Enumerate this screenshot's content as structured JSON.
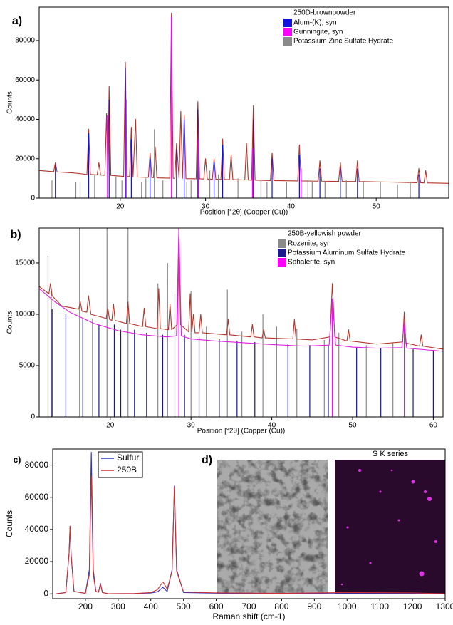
{
  "chart_data": [
    {
      "type": "xrd",
      "panel_label": "a)",
      "x_label": "Position [°2θ] (Copper (Cu))",
      "y_label": "Counts",
      "legend_title": "250D-brownpowder",
      "legend": "upper right",
      "xlim": [
        10.5,
        58.5
      ],
      "xticks": [
        20,
        30,
        40,
        50
      ],
      "ylim": [
        0,
        97000
      ],
      "yticks": [
        0,
        20000,
        40000,
        60000,
        80000
      ],
      "series": [
        {
          "color": "#b5342a",
          "kind": "line",
          "x": [
            10.5,
            12.2,
            12.4,
            12.6,
            14.5,
            16.1,
            16.3,
            16.5,
            17.3,
            17.5,
            17.7,
            18.2,
            18.4,
            18.55,
            18.7,
            18.9,
            20.4,
            20.6,
            20.8,
            21.1,
            21.3,
            21.5,
            21.8,
            22.0,
            23.3,
            23.5,
            23.7,
            23.9,
            24.1,
            24.3,
            25.8,
            26.0,
            26.2,
            26.4,
            26.6,
            26.9,
            27.1,
            27.3,
            27.5,
            27.7,
            28.9,
            29.1,
            29.3,
            29.8,
            30.0,
            30.2,
            30.8,
            31.0,
            31.2,
            31.8,
            32.0,
            32.2,
            32.8,
            33.0,
            33.2,
            34.6,
            34.8,
            35.0,
            35.4,
            35.6,
            35.8,
            37.6,
            37.8,
            38.0,
            40.8,
            41.0,
            41.2,
            43.2,
            43.4,
            43.6,
            45.6,
            45.8,
            46.0,
            47.6,
            47.8,
            48.0,
            52,
            54.8,
            55.0,
            55.2,
            55.6,
            55.8,
            56.0,
            58.5
          ],
          "values": [
            14000,
            13400,
            18000,
            13300,
            12800,
            12000,
            35000,
            12000,
            11800,
            18000,
            11700,
            11600,
            43000,
            12000,
            57000,
            11500,
            11000,
            69000,
            10900,
            11000,
            36000,
            10800,
            40000,
            10700,
            10500,
            23000,
            10400,
            10400,
            26000,
            10300,
            10100,
            94000,
            10100,
            10000,
            28000,
            10000,
            44000,
            10000,
            42000,
            9900,
            9800,
            49000,
            9800,
            9700,
            20000,
            9700,
            9600,
            20000,
            9600,
            9500,
            30000,
            9500,
            9400,
            22000,
            9400,
            9200,
            28000,
            9200,
            9100,
            47000,
            9100,
            8900,
            23000,
            8900,
            8700,
            27000,
            8700,
            8600,
            19000,
            8600,
            8500,
            18000,
            8500,
            8400,
            19000,
            8400,
            8100,
            7800,
            15000,
            7800,
            7700,
            14000,
            7700,
            7500
          ]
        },
        {
          "name": "Alum-(K), syn",
          "color": "#1010e0",
          "kind": "stick",
          "x": [
            12.4,
            16.3,
            18.7,
            20.6,
            21.3,
            23.5,
            26.6,
            27.5,
            29.1,
            31.0,
            32.0,
            35.6,
            37.8,
            41.0,
            43.4,
            45.8,
            47.8,
            55.0
          ],
          "values": [
            17000,
            33000,
            50000,
            66000,
            30000,
            20000,
            25000,
            40000,
            45000,
            18000,
            27000,
            40000,
            20000,
            22000,
            15000,
            15000,
            15000,
            12000
          ]
        },
        {
          "name": "Gunningite, syn",
          "color": "#ff00ff",
          "kind": "stick",
          "x": [
            18.5,
            20.7,
            26.0,
            29.2,
            35.5,
            41.2
          ],
          "values": [
            42000,
            50000,
            92000,
            30000,
            25000,
            15000
          ]
        },
        {
          "name": "Potassium Zinc Sulfate Hydrate",
          "color": "#8a8a8a",
          "kind": "stick",
          "x": [
            12.0,
            14.8,
            15.3,
            17.0,
            19.5,
            20.2,
            22.5,
            23.0,
            24.0,
            25.0,
            27.8,
            28.3,
            30.5,
            31.5,
            33.8,
            36.5,
            37.2,
            39.5,
            42.0,
            42.5,
            44.0,
            46.5,
            48.5,
            50.5,
            52.5,
            54.0
          ],
          "values": [
            9000,
            8000,
            8000,
            12000,
            11000,
            9000,
            8000,
            10000,
            35000,
            9000,
            8000,
            9000,
            14000,
            12000,
            10000,
            9000,
            8000,
            8000,
            9000,
            8000,
            8000,
            9000,
            8000,
            8000,
            7000,
            8000
          ]
        }
      ]
    },
    {
      "type": "xrd",
      "panel_label": "b)",
      "x_label": "Position [°2θ] (Copper (Cu))",
      "y_label": "Counts",
      "legend_title": "250B-yellowish powder",
      "legend": "upper right",
      "xlim": [
        11.2,
        61.2
      ],
      "xticks": [
        20,
        30,
        40,
        50,
        60
      ],
      "ylim": [
        0,
        18400
      ],
      "yticks": [
        0,
        5000,
        10000,
        15000
      ],
      "series": [
        {
          "name": "Rozenite, syn",
          "color": "#8a8a8a",
          "kind": "stick",
          "x": [
            12.3,
            12.7,
            16.2,
            17.8,
            19.6,
            22.2,
            25.9,
            27.1,
            28.0,
            30.0,
            31.9,
            34.5,
            36.3,
            38.9,
            40.6,
            43.1,
            46.5,
            48.3,
            51.7,
            55.0
          ],
          "values": [
            15700,
            12500,
            18400,
            9600,
            18400,
            18400,
            13000,
            15000,
            12000,
            12300,
            8800,
            12400,
            8300,
            10000,
            8800,
            8600,
            7500,
            8200,
            7000,
            7200
          ]
        },
        {
          "name": "Potassium Aluminum Sulfate Hydrate",
          "color": "#1a1a8a",
          "kind": "stick",
          "x": [
            12.8,
            14.5,
            16.6,
            18.6,
            20.5,
            21.3,
            23.0,
            24.5,
            26.5,
            29.2,
            31.0,
            33.5,
            35.7,
            37.9,
            42.0,
            44.7,
            47.0,
            50.5,
            53.5,
            57.5,
            60.0
          ],
          "values": [
            10500,
            10000,
            9500,
            9000,
            9000,
            8500,
            8500,
            8200,
            8000,
            8000,
            7800,
            7600,
            7400,
            7300,
            7100,
            7000,
            7000,
            6800,
            6700,
            6600,
            6500
          ]
        },
        {
          "name": "Sphalerite, syn",
          "color": "#ff00ff",
          "kind": "stick",
          "x": [
            28.5,
            47.5,
            56.4
          ],
          "values": [
            18400,
            11000,
            9000
          ]
        },
        {
          "color": "#b5342a",
          "kind": "line",
          "x": [
            11.2,
            12.4,
            12.6,
            12.8,
            14,
            16.1,
            16.3,
            16.5,
            17.1,
            17.3,
            17.6,
            19.5,
            19.7,
            19.9,
            20.2,
            20.4,
            20.6,
            22.0,
            22.2,
            22.4,
            24.0,
            24.2,
            24.4,
            25.8,
            26.0,
            26.2,
            27.2,
            27.4,
            27.6,
            28.3,
            28.5,
            28.7,
            29.7,
            29.9,
            30.1,
            30.3,
            30.5,
            31.0,
            31.2,
            31.4,
            34.4,
            34.6,
            34.8,
            37.4,
            37.6,
            37.8,
            38.8,
            39.0,
            39.2,
            42.6,
            42.8,
            43.0,
            45,
            47.2,
            47.5,
            47.8,
            49.3,
            49.5,
            49.7,
            53,
            56.2,
            56.4,
            56.6,
            58.3,
            58.5,
            58.7,
            61.2
          ],
          "values": [
            12700,
            12000,
            13000,
            11800,
            10800,
            10500,
            11200,
            10300,
            10200,
            11800,
            10000,
            9600,
            10600,
            9500,
            9400,
            11000,
            9400,
            9100,
            11200,
            9100,
            8800,
            10600,
            8800,
            8600,
            12500,
            8600,
            8500,
            11000,
            8500,
            9000,
            18400,
            9000,
            8300,
            12000,
            8300,
            10000,
            8200,
            8200,
            10000,
            8200,
            8000,
            9500,
            8000,
            7800,
            9000,
            7800,
            7700,
            8500,
            7700,
            7600,
            9500,
            7600,
            7500,
            7800,
            13000,
            7800,
            7400,
            8500,
            7400,
            7100,
            7300,
            10200,
            7200,
            6900,
            8000,
            6900,
            6600
          ]
        },
        {
          "color": "#e020e0",
          "kind": "line",
          "x": [
            11.2,
            13,
            15,
            18,
            21,
            24,
            27,
            28.2,
            28.5,
            28.8,
            30,
            33,
            36,
            40,
            44,
            47.1,
            47.5,
            47.9,
            50,
            53,
            56.1,
            56.4,
            56.7,
            61.2
          ],
          "values": [
            12500,
            11300,
            10200,
            9100,
            8400,
            8000,
            7800,
            7900,
            18400,
            7900,
            7600,
            7400,
            7250,
            7050,
            6900,
            7000,
            11500,
            7000,
            6800,
            6700,
            6750,
            9300,
            6700,
            6400
          ]
        }
      ]
    },
    {
      "type": "line",
      "panel_label": "c)",
      "x_label": "Raman shift (cm-1)",
      "y_label": "Counts",
      "legend": "upper left",
      "xlim": [
        100,
        1300
      ],
      "xticks": [
        200,
        300,
        400,
        500,
        600,
        700,
        800,
        900,
        1000,
        1100,
        1200,
        1300
      ],
      "ylim": [
        -3000,
        90000
      ],
      "yticks": [
        0,
        20000,
        40000,
        60000,
        80000
      ],
      "series": [
        {
          "name": "Sulfur",
          "color": "#3434c4",
          "kind": "line",
          "x": [
            110,
            140,
            150,
            153,
            156,
            165,
            200,
            212,
            218,
            224,
            232,
            240,
            246,
            252,
            270,
            350,
            400,
            420,
            437,
            450,
            465,
            472,
            479,
            500,
            600,
            800,
            1000,
            1200,
            1300
          ],
          "values": [
            0,
            800,
            25000,
            42000,
            25000,
            1500,
            300,
            15000,
            88000,
            15000,
            1500,
            1000,
            6500,
            800,
            100,
            200,
            500,
            1200,
            4000,
            1500,
            15000,
            67000,
            15000,
            800,
            400,
            0,
            200,
            100,
            0
          ]
        },
        {
          "name": "250B",
          "color": "#d03030",
          "kind": "line",
          "x": [
            110,
            140,
            150,
            153,
            156,
            165,
            200,
            212,
            218,
            224,
            232,
            240,
            246,
            252,
            270,
            350,
            400,
            420,
            437,
            450,
            465,
            472,
            479,
            500,
            600,
            800,
            1000,
            1200,
            1300
          ],
          "values": [
            0,
            800,
            25000,
            42000,
            25000,
            1500,
            300,
            12000,
            73000,
            12000,
            1500,
            1000,
            6000,
            800,
            100,
            200,
            800,
            2500,
            7500,
            3000,
            14000,
            66000,
            14000,
            1200,
            600,
            300,
            800,
            600,
            0
          ]
        }
      ]
    }
  ],
  "figure_d": {
    "label": "d)",
    "map_title": "S K series"
  }
}
